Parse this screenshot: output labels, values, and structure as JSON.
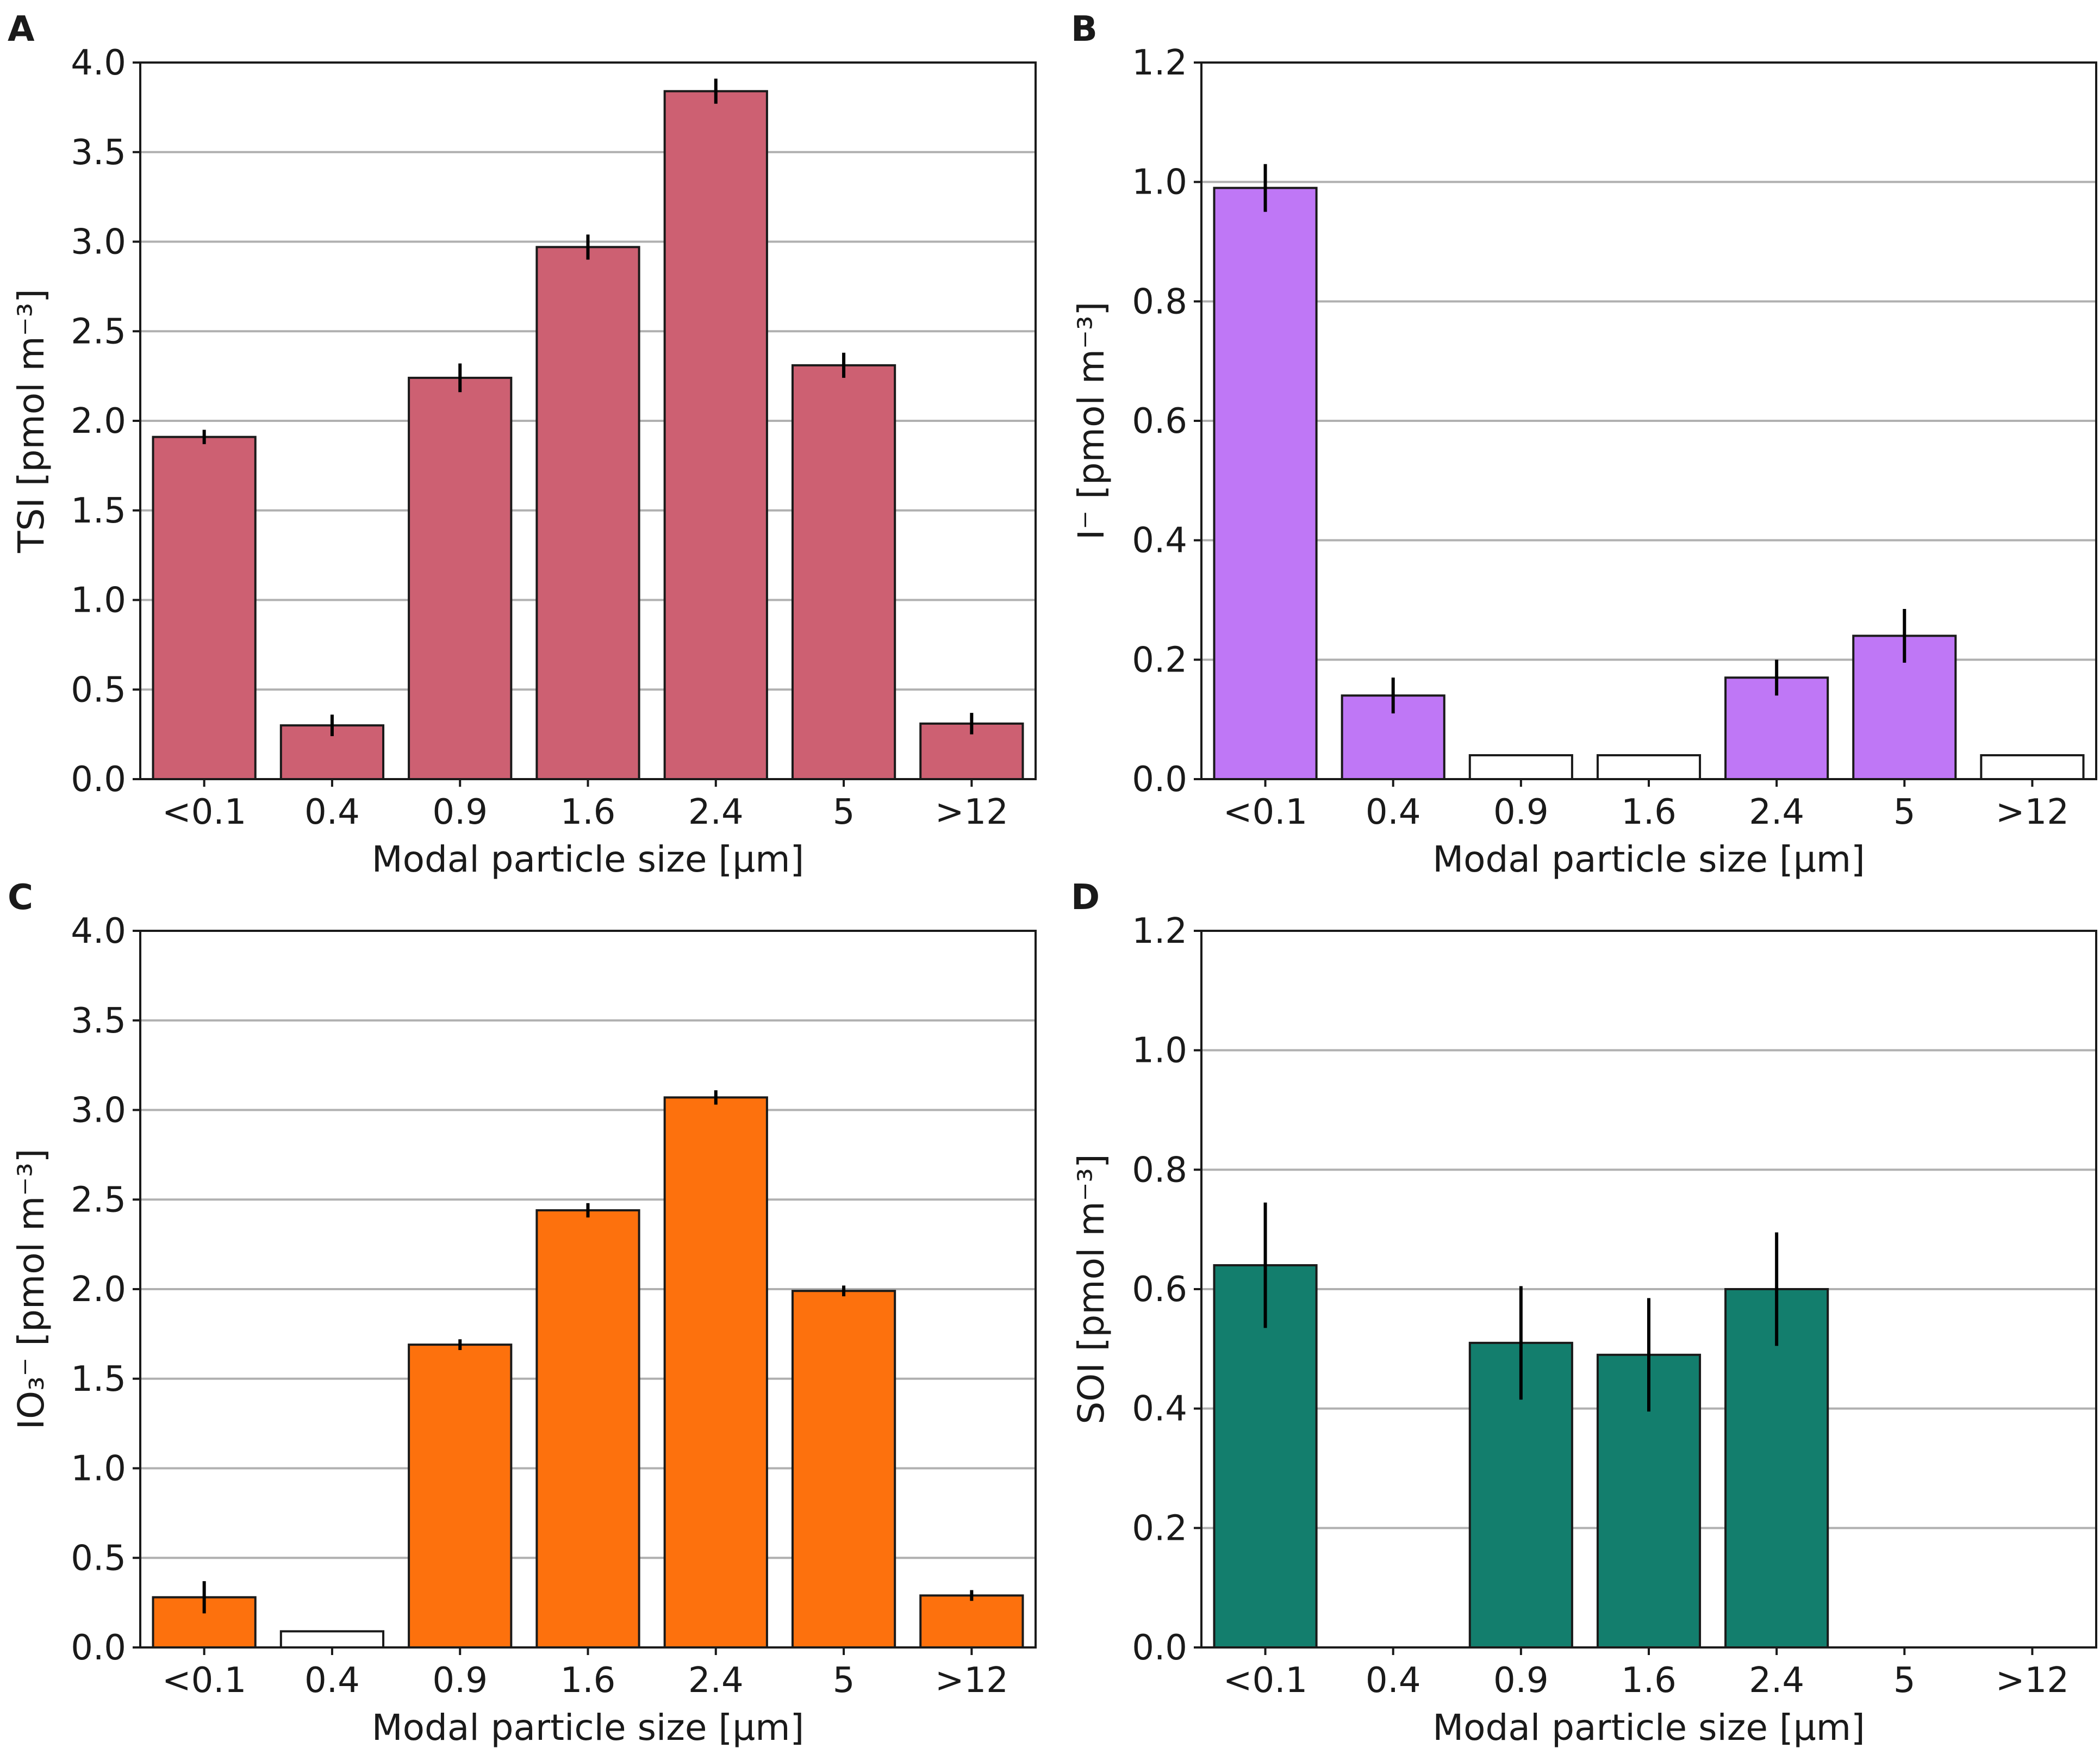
{
  "xlabel": "Modal particle size [μm]",
  "categories": [
    "<0.1",
    "0.4",
    "0.9",
    "1.6",
    "2.4",
    "5",
    ">12"
  ],
  "chart_data": [
    {
      "type": "bar",
      "panel": "A",
      "ylabel": "TSI [pmol m⁻³]",
      "color": "#cd6072",
      "ylim": [
        0,
        4.0
      ],
      "yticks": [
        "0.0",
        "0.5",
        "1.0",
        "1.5",
        "2.0",
        "2.5",
        "3.0",
        "3.5",
        "4.0"
      ],
      "values": [
        1.91,
        0.3,
        2.24,
        2.97,
        3.84,
        2.31,
        0.31
      ],
      "errors": [
        0.04,
        0.06,
        0.08,
        0.07,
        0.07,
        0.07,
        0.06
      ],
      "filled": [
        true,
        true,
        true,
        true,
        true,
        true,
        true
      ]
    },
    {
      "type": "bar",
      "panel": "B",
      "ylabel": "I⁻ [pmol m⁻³]",
      "color": "#bf77f6",
      "ylim": [
        0,
        1.2
      ],
      "yticks": [
        "0.0",
        "0.2",
        "0.4",
        "0.6",
        "0.8",
        "1.0",
        "1.2"
      ],
      "values": [
        0.99,
        0.14,
        0.04,
        0.04,
        0.17,
        0.24,
        0.04
      ],
      "errors": [
        0.04,
        0.03,
        0,
        0,
        0.03,
        0.045,
        0
      ],
      "filled": [
        true,
        true,
        false,
        false,
        true,
        true,
        false
      ]
    },
    {
      "type": "bar",
      "panel": "C",
      "ylabel": "IO₃⁻ [pmol m⁻³]",
      "color": "#fd710d",
      "ylim": [
        0,
        4.0
      ],
      "yticks": [
        "0.0",
        "0.5",
        "1.0",
        "1.5",
        "2.0",
        "2.5",
        "3.0",
        "3.5",
        "4.0"
      ],
      "values": [
        0.28,
        0.09,
        1.69,
        2.44,
        3.07,
        1.99,
        0.29
      ],
      "errors": [
        0.09,
        0,
        0.03,
        0.04,
        0.04,
        0.03,
        0.03
      ],
      "filled": [
        true,
        false,
        true,
        true,
        true,
        true,
        true
      ]
    },
    {
      "type": "bar",
      "panel": "D",
      "ylabel": "SOI [pmol m⁻³]",
      "color": "#137e6d",
      "ylim": [
        0,
        1.2
      ],
      "yticks": [
        "0.0",
        "0.2",
        "0.4",
        "0.6",
        "0.8",
        "1.0",
        "1.2"
      ],
      "values": [
        0.64,
        null,
        0.51,
        0.49,
        0.6,
        null,
        null
      ],
      "errors": [
        0.105,
        0,
        0.095,
        0.095,
        0.095,
        0,
        0
      ],
      "filled": [
        true,
        false,
        true,
        true,
        true,
        false,
        false
      ]
    }
  ]
}
